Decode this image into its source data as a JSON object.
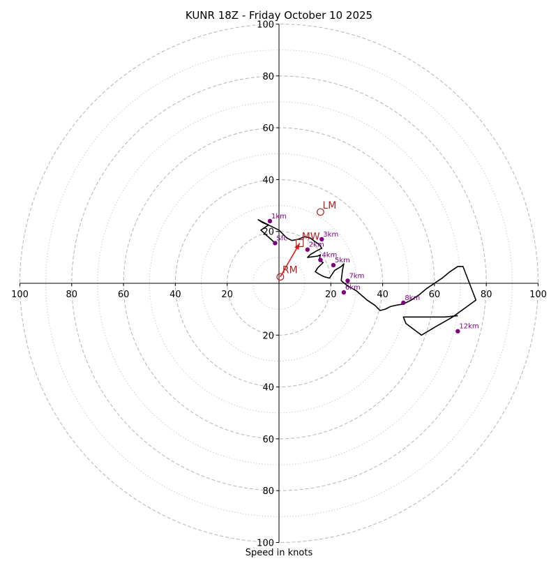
{
  "chart_data": {
    "type": "hodograph",
    "title": "KUNR 18Z - Friday October 10 2025",
    "xlabel": "Speed in knots",
    "units": "knots",
    "range": [
      -100,
      100
    ],
    "ring_major": [
      20,
      40,
      60,
      80,
      100
    ],
    "ring_minor": [
      10,
      30,
      50,
      70,
      90
    ],
    "grid": true,
    "x_ticks": [
      "100",
      "80",
      "60",
      "40",
      "20",
      "20",
      "40",
      "60",
      "80",
      "100"
    ],
    "y_ticks": [
      "100",
      "80",
      "60",
      "40",
      "20",
      "20",
      "40",
      "60",
      "80",
      "100"
    ],
    "colors": {
      "hodograph": "#000000",
      "heights": "#800080",
      "storm_motion": "#b22222",
      "shear_vector": "#e41a1c",
      "grid": "#bbbbbb"
    },
    "hodograph": {
      "u": [
        -1.5,
        -7,
        -4,
        -8,
        -6.5,
        -3,
        0,
        2,
        3,
        5,
        7.5,
        10,
        12,
        14,
        15.5,
        16.5,
        14.5,
        12,
        11,
        15,
        16,
        15.5,
        17,
        15,
        14,
        15.5,
        17.5,
        19.5,
        21.5,
        24,
        25,
        24.5,
        24,
        26.5,
        30,
        34,
        37,
        39,
        41,
        43,
        45,
        48,
        51,
        54,
        57,
        60,
        63,
        66,
        69,
        71,
        76,
        67,
        60,
        55,
        49,
        48,
        58,
        64,
        69
      ],
      "v": [
        15.5,
        20.5,
        22.5,
        24.5,
        23.5,
        22,
        20.5,
        18.5,
        17.5,
        16.5,
        17,
        18,
        17.5,
        16,
        15,
        13.5,
        12.5,
        11,
        10,
        10.5,
        11,
        9,
        8,
        6,
        4.5,
        3.5,
        2.5,
        2,
        5,
        6.5,
        7.5,
        5,
        1,
        -1,
        -3,
        -6.5,
        -8.5,
        -10.5,
        -10,
        -9,
        -8.5,
        -8,
        -6.5,
        -4.5,
        -2,
        0,
        2,
        4.5,
        6.5,
        6.5,
        -6.5,
        -13,
        -17,
        -20,
        -15.5,
        -13,
        -13,
        -13,
        -12.5
      ]
    },
    "height_points": [
      {
        "label": "Sfc",
        "u": -1.5,
        "v": 15.5
      },
      {
        "label": "1km",
        "u": -3.5,
        "v": 24
      },
      {
        "label": "2km",
        "u": 11,
        "v": 13
      },
      {
        "label": "3km",
        "u": 16.5,
        "v": 17
      },
      {
        "label": "4km",
        "u": 16,
        "v": 9
      },
      {
        "label": "5km",
        "u": 21,
        "v": 7
      },
      {
        "label": "6km",
        "u": 25,
        "v": -3.5
      },
      {
        "label": "7km",
        "u": 26.5,
        "v": 1
      },
      {
        "label": "8km",
        "u": 48,
        "v": -7.5
      },
      {
        "label": "12km",
        "u": 69,
        "v": -18.5
      }
    ],
    "storm_motion": [
      {
        "label": "RM",
        "u": 0.5,
        "v": 2.5,
        "marker": "circle"
      },
      {
        "label": "LM",
        "u": 16,
        "v": 27.5,
        "marker": "circle"
      },
      {
        "label": "MW",
        "u": 8,
        "v": 15.5,
        "marker": "square"
      }
    ],
    "shear_vector": {
      "from": [
        0.5,
        2.5
      ],
      "to": [
        8,
        15.5
      ]
    }
  }
}
